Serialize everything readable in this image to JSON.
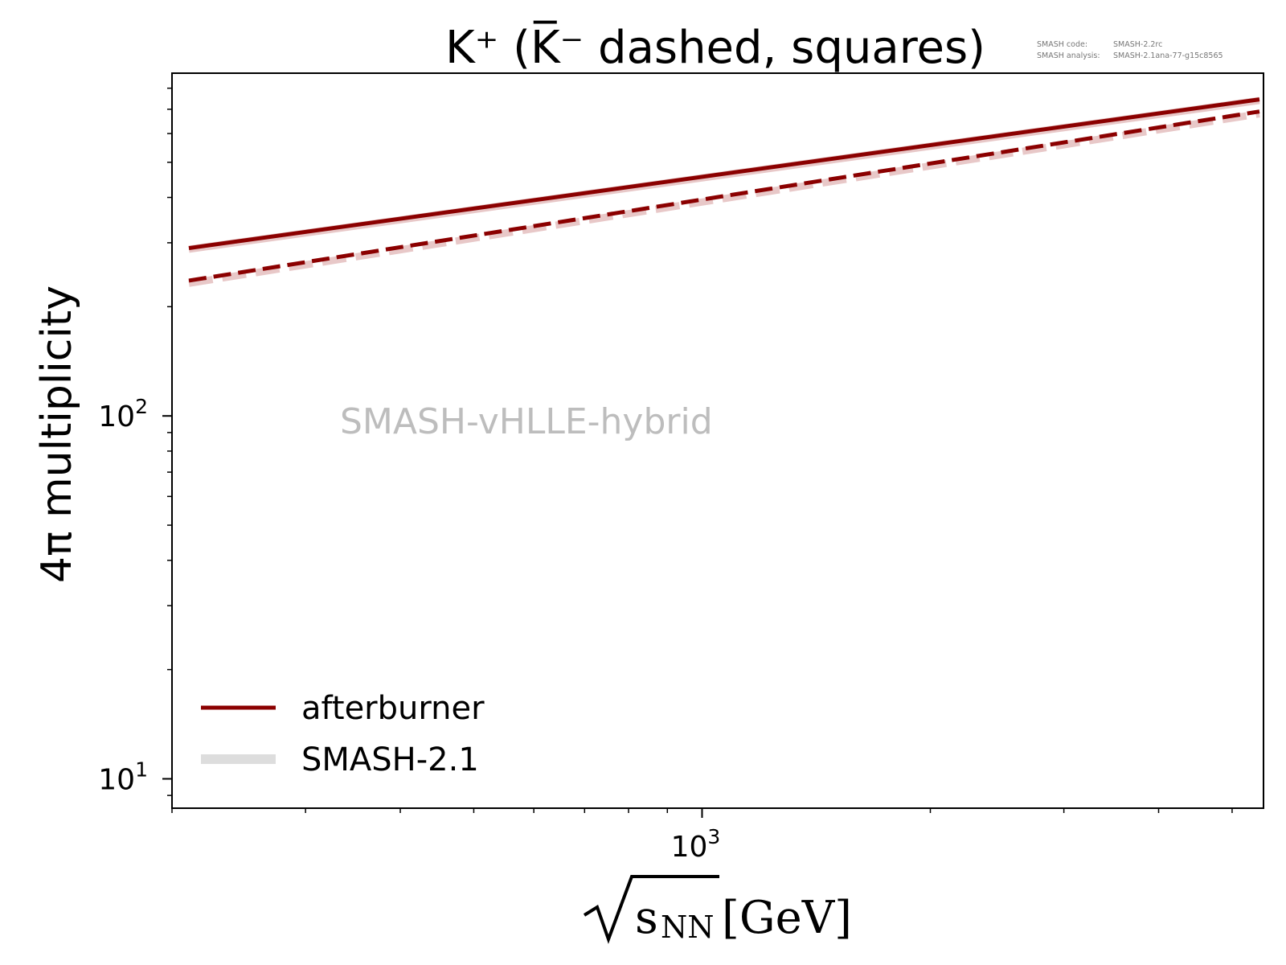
{
  "chart_data": {
    "type": "line",
    "title": "K⁺ (K̅⁻ dashed, squares)",
    "xlabel": "s",
    "xlabel_subscript": "NN",
    "xlabel_unit": "[GeV]",
    "ylabel": "4π multiplicity",
    "x_scale": "log",
    "y_scale": "log",
    "xlim": [
      200,
      5500
    ],
    "ylim": [
      8.3,
      880
    ],
    "x_ticks": [
      {
        "value": 1000,
        "base": "10",
        "exp": "3"
      }
    ],
    "y_ticks": [
      {
        "value": 10,
        "base": "10",
        "exp": "1"
      },
      {
        "value": 100,
        "base": "10",
        "exp": "2"
      }
    ],
    "grid": false,
    "legend_position": "lower-left",
    "legend": [
      {
        "label": "afterburner",
        "color": "#8b0000"
      },
      {
        "label": "SMASH-2.1",
        "color": "#dddddd"
      }
    ],
    "annotation": "SMASH-vHLLE-hybrid",
    "series": [
      {
        "name": "afterburner",
        "particle": "K+",
        "style": "solid",
        "color": "#8b0000",
        "x": [
          200,
          5500
        ],
        "y": [
          290,
          745
        ]
      },
      {
        "name": "afterburner",
        "particle": "K-",
        "style": "dashed",
        "color": "#8b0000",
        "x": [
          200,
          5500
        ],
        "y": [
          236,
          690
        ]
      },
      {
        "name": "SMASH-2.1",
        "particle": "K+",
        "style": "solid",
        "color": "#e8c8c8",
        "x": [
          200,
          5500
        ],
        "y": [
          288,
          740
        ]
      },
      {
        "name": "SMASH-2.1",
        "particle": "K-",
        "style": "dashed",
        "color": "#e8c8c8",
        "x": [
          200,
          5500
        ],
        "y": [
          232,
          680
        ]
      }
    ]
  },
  "version_info": {
    "code_label": "SMASH code:",
    "code_value": "SMASH-2.2rc",
    "analysis_label": "SMASH analysis:",
    "analysis_value": "SMASH-2.1ana-77-g15c8565"
  }
}
